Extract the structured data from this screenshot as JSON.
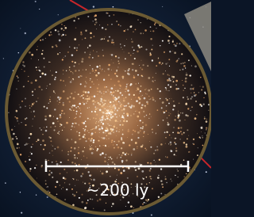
{
  "scale_label": "~200 ly"
}
